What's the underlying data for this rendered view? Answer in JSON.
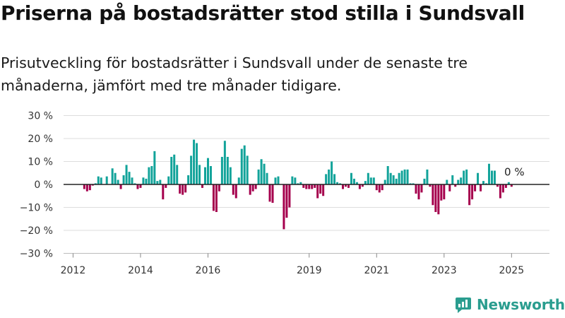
{
  "header": {
    "title": "Priserna på bostadsrätter stod stilla i Sundsvall",
    "subtitle": "Prisutveckling för bostadsrätter i Sundsvall under de senaste tre månaderna, jämfört med tre månader tidigare."
  },
  "brand": {
    "name": "Newsworthy"
  },
  "colors": {
    "positive": "#12a39a",
    "negative": "#a5004d",
    "grid": "#dddddd",
    "zero_line": "#222222"
  },
  "chart_data": {
    "type": "bar",
    "title": "Priserna på bostadsrätter stod stilla i Sundsvall",
    "subtitle": "Prisutveckling för bostadsrätter i Sundsvall under de senaste tre månaderna, jämfört med tre månader tidigare.",
    "xlabel": "",
    "ylabel": "",
    "x_unit": "month",
    "x_start": "2011-10",
    "x_ticks": [
      "2012",
      "2014",
      "2016",
      "2019",
      "2021",
      "2023",
      "2025"
    ],
    "y_ticks": [
      "30 %",
      "20 %",
      "10 %",
      "0 %",
      "−10 %",
      "−20 %",
      "−30 %"
    ],
    "ylim": [
      -30,
      30
    ],
    "grid": true,
    "legend": "none",
    "annotation": "0 %",
    "series": [
      {
        "values": [
          0,
          0,
          0,
          0,
          0,
          0,
          0,
          -2,
          -3,
          -2.5,
          -0.5,
          0.5,
          3.5,
          3,
          0,
          3.5,
          0,
          7,
          5,
          2,
          -2,
          4,
          8.5,
          5.5,
          3,
          0.5,
          -2,
          -1.5,
          3,
          2.5,
          7.5,
          8,
          14.5,
          1.5,
          2,
          -6.5,
          -1.5,
          3.5,
          12,
          13,
          8.5,
          -4,
          -4.5,
          -3.5,
          4,
          12.5,
          19.5,
          18,
          8.5,
          -1.5,
          7.5,
          11.5,
          8,
          -11.5,
          -12,
          -3,
          12,
          19,
          12,
          7.5,
          -4.5,
          -6,
          3,
          15.5,
          17,
          12.5,
          -4.5,
          -3,
          -2,
          6.5,
          11,
          9,
          5,
          -7.5,
          -8,
          3,
          3.5,
          0,
          -19.5,
          -14.5,
          -10,
          3.5,
          3,
          0.5,
          1,
          -1.5,
          -2,
          -2,
          -2,
          -1.5,
          -6,
          -4,
          -5,
          4.5,
          6.5,
          10,
          4.5,
          1,
          0.5,
          -2,
          -1,
          -1.5,
          5,
          2.5,
          1,
          -2,
          -1,
          1.5,
          5,
          3,
          3,
          -2.5,
          -3.5,
          -2.5,
          2,
          8,
          5,
          4,
          2.5,
          5,
          6,
          6.5,
          6.5,
          0.5,
          0.5,
          -4,
          -6.5,
          -3.5,
          2.5,
          6.5,
          -1,
          -9,
          -12,
          -13,
          -7,
          -6.5,
          2,
          -3,
          4,
          -1,
          2,
          3,
          6,
          6.5,
          -9,
          -6.5,
          -3,
          5,
          -3,
          1.5,
          0.5,
          9,
          6,
          6,
          -1,
          -6,
          -3.5,
          -1.5,
          1,
          -1
        ]
      }
    ]
  }
}
